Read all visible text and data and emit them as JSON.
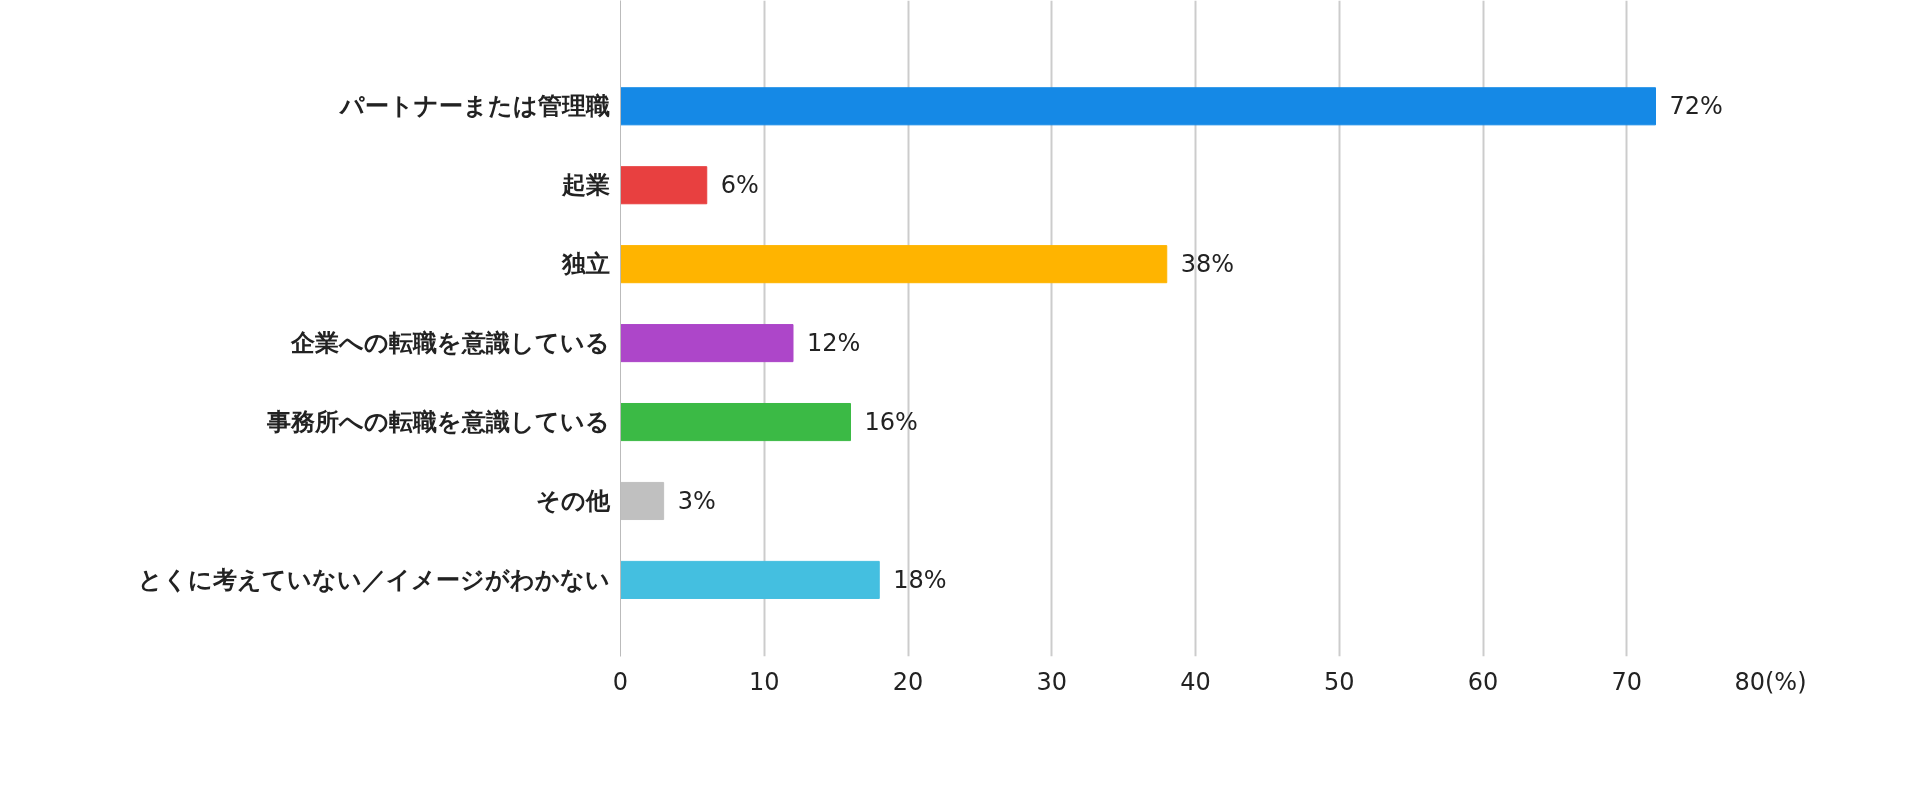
{
  "chart_data": {
    "type": "bar",
    "orientation": "horizontal",
    "categories": [
      "パートナーまたは管理職",
      "起業",
      "独立",
      "企業への転職を意識している",
      "事務所への転職を意識している",
      "その他",
      "とくに考えていない／イメージがわかない"
    ],
    "values": [
      72,
      6,
      38,
      12,
      16,
      3,
      18
    ],
    "colors": [
      "#1589e6",
      "#e84040",
      "#ffb400",
      "#ad46c9",
      "#3bba45",
      "#c0c0c0",
      "#44bfe0"
    ],
    "value_labels": [
      "72%",
      "6%",
      "38%",
      "12%",
      "16%",
      "3%",
      "18%"
    ],
    "xlim": [
      0,
      80
    ],
    "xticks": [
      0,
      10,
      20,
      30,
      40,
      50,
      60,
      70,
      {
        "value": 80,
        "label": "80(%)"
      }
    ],
    "grid": "x"
  }
}
